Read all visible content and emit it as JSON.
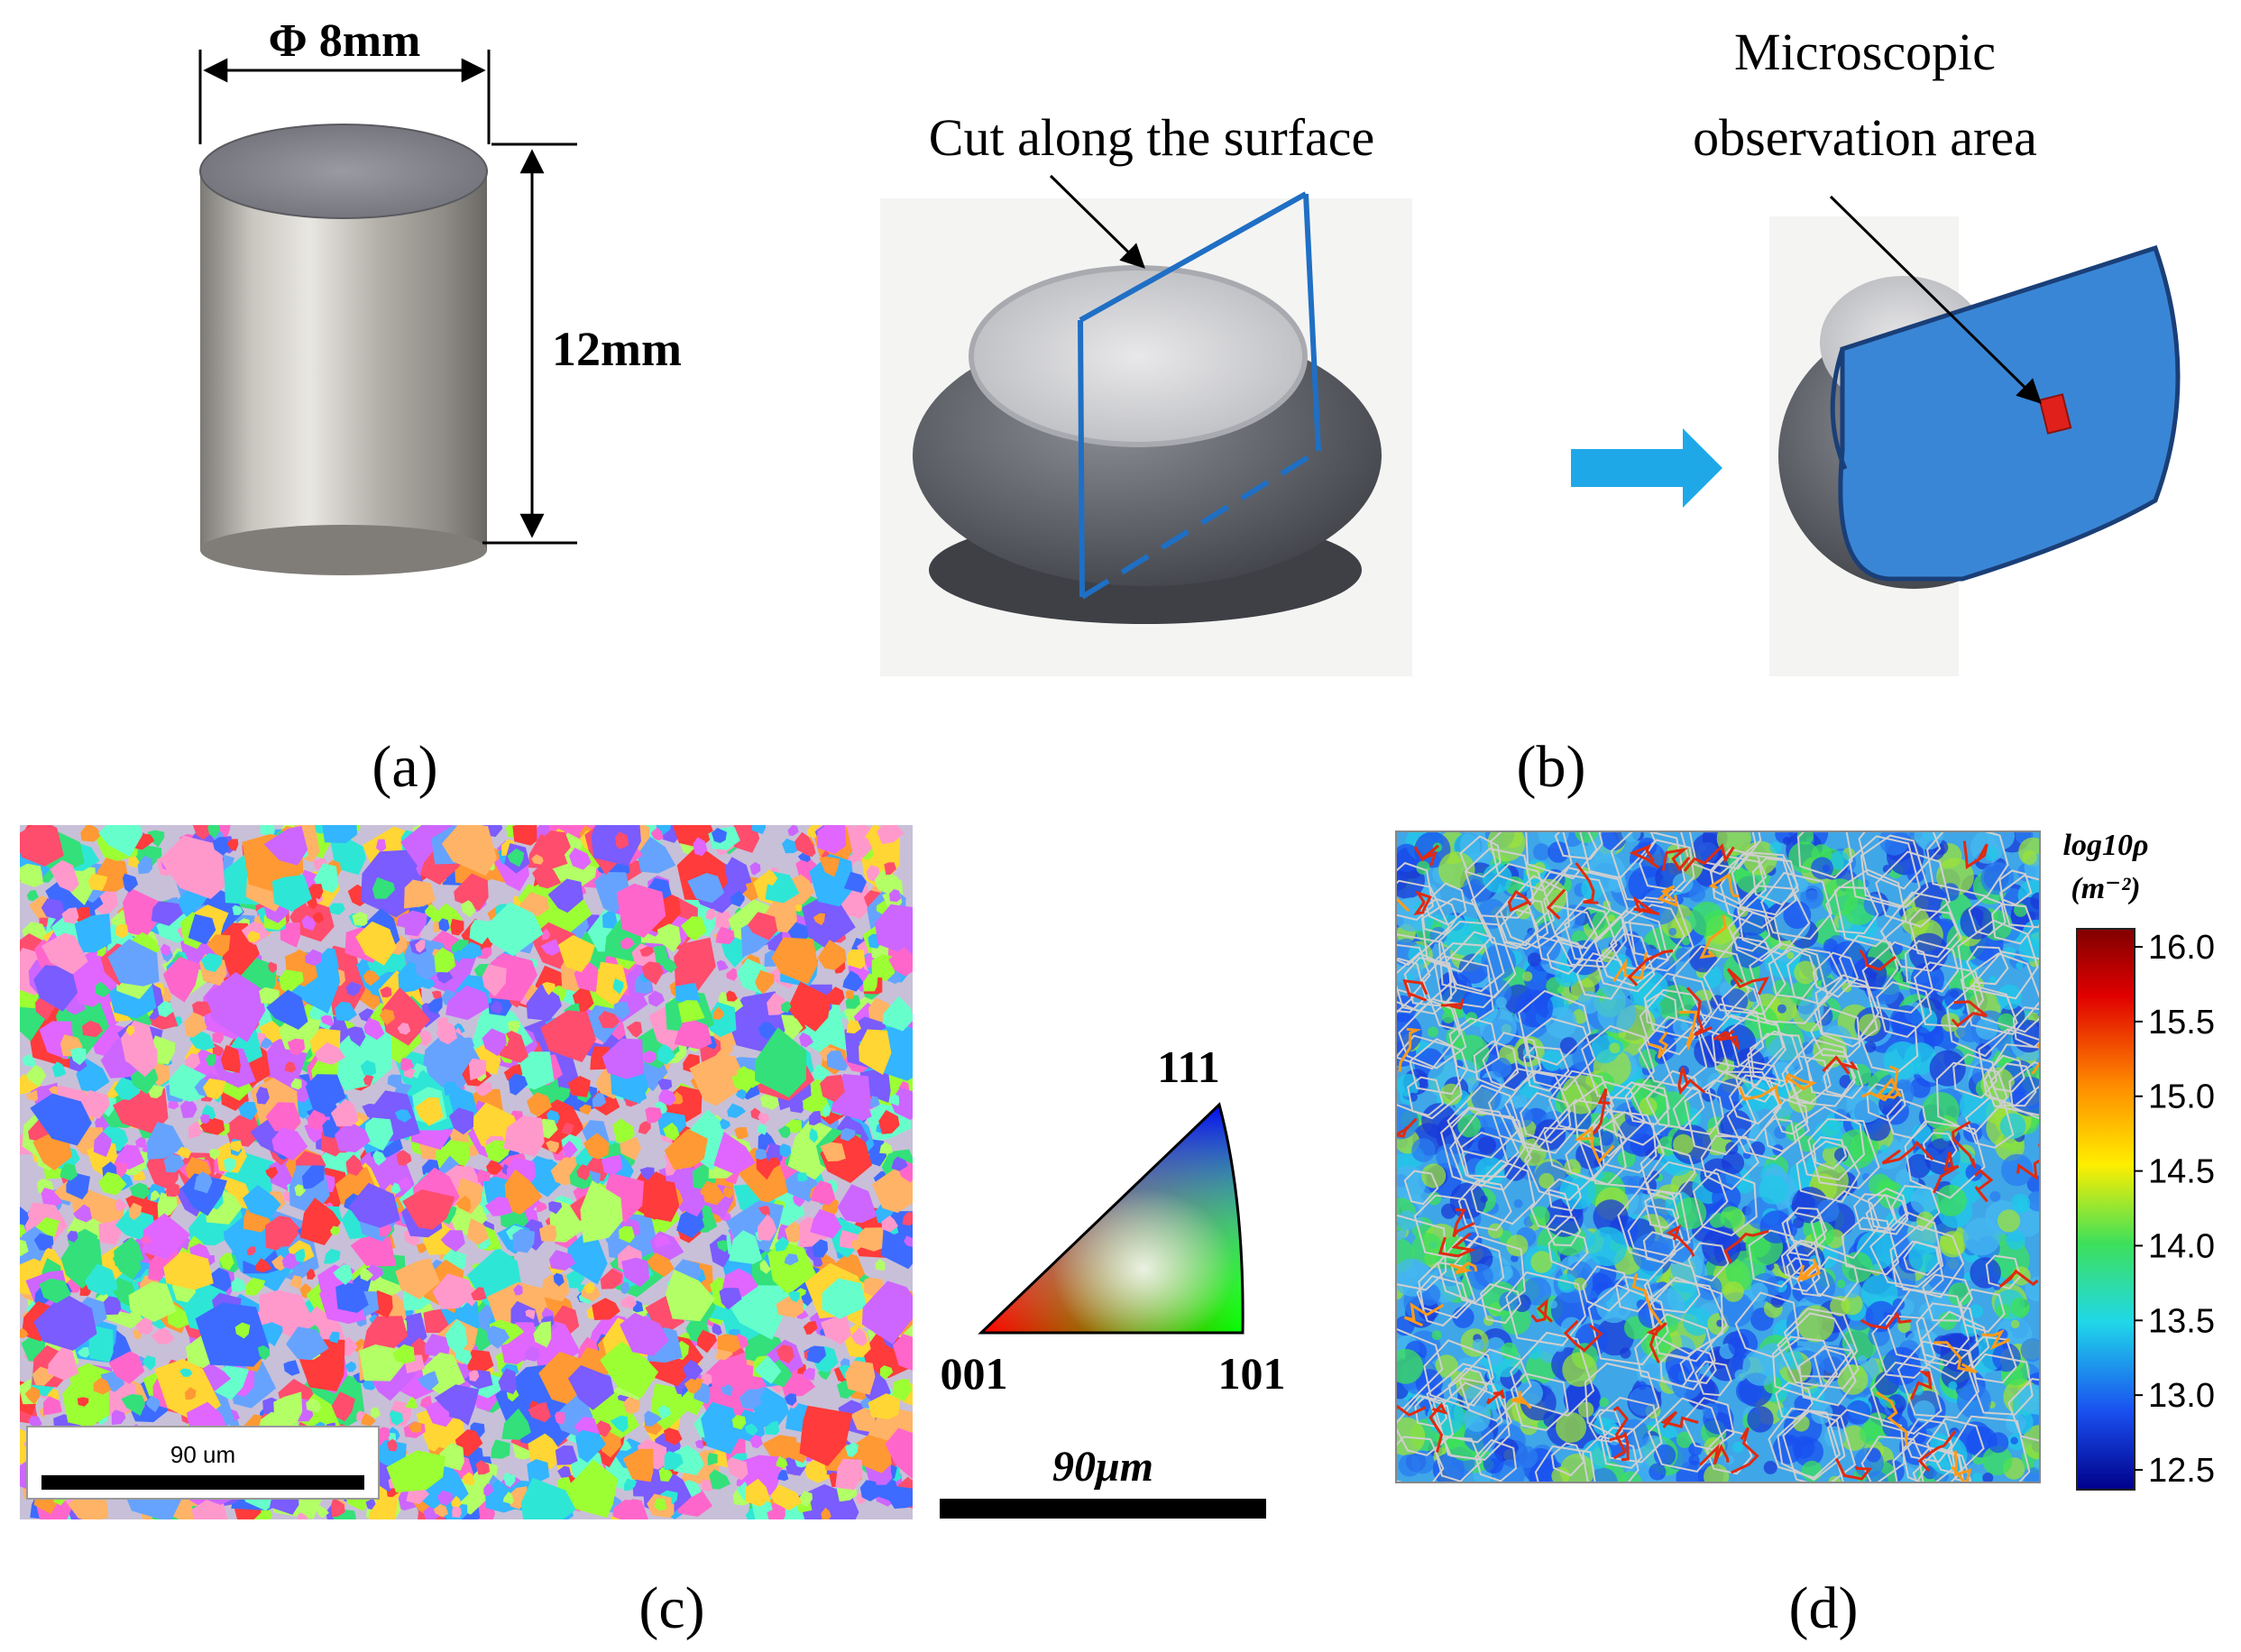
{
  "panel_a": {
    "diameter_label": "Φ 8mm",
    "height_label": "12mm",
    "caption": "(a)"
  },
  "panel_b": {
    "cut_label": "Cut along the surface",
    "obs_label_line1": "Microscopic",
    "obs_label_line2": "observation area",
    "caption": "(b)"
  },
  "panel_c": {
    "scalebar_label": "90 um",
    "ipf": {
      "corner_001": "001",
      "corner_101": "101",
      "corner_111": "111"
    },
    "scalebar2_label": "90μm",
    "caption": "(c)"
  },
  "panel_d": {
    "colorbar_title_line1": "log10ρ",
    "colorbar_title_line2": "(m⁻²)",
    "colorbar_ticks": [
      "16.0",
      "15.5",
      "15.0",
      "14.5",
      "14.0",
      "13.5",
      "13.0",
      "12.5"
    ],
    "caption": "(d)"
  },
  "colors": {
    "cut_plane": "#1f6fc4",
    "section_fill": "#3a86d6",
    "observation_square": "#e0201b",
    "arrow": "#1fa8e8",
    "cylinder_metal": "#b9b6b0",
    "specimen_gray": "#5d6066"
  }
}
